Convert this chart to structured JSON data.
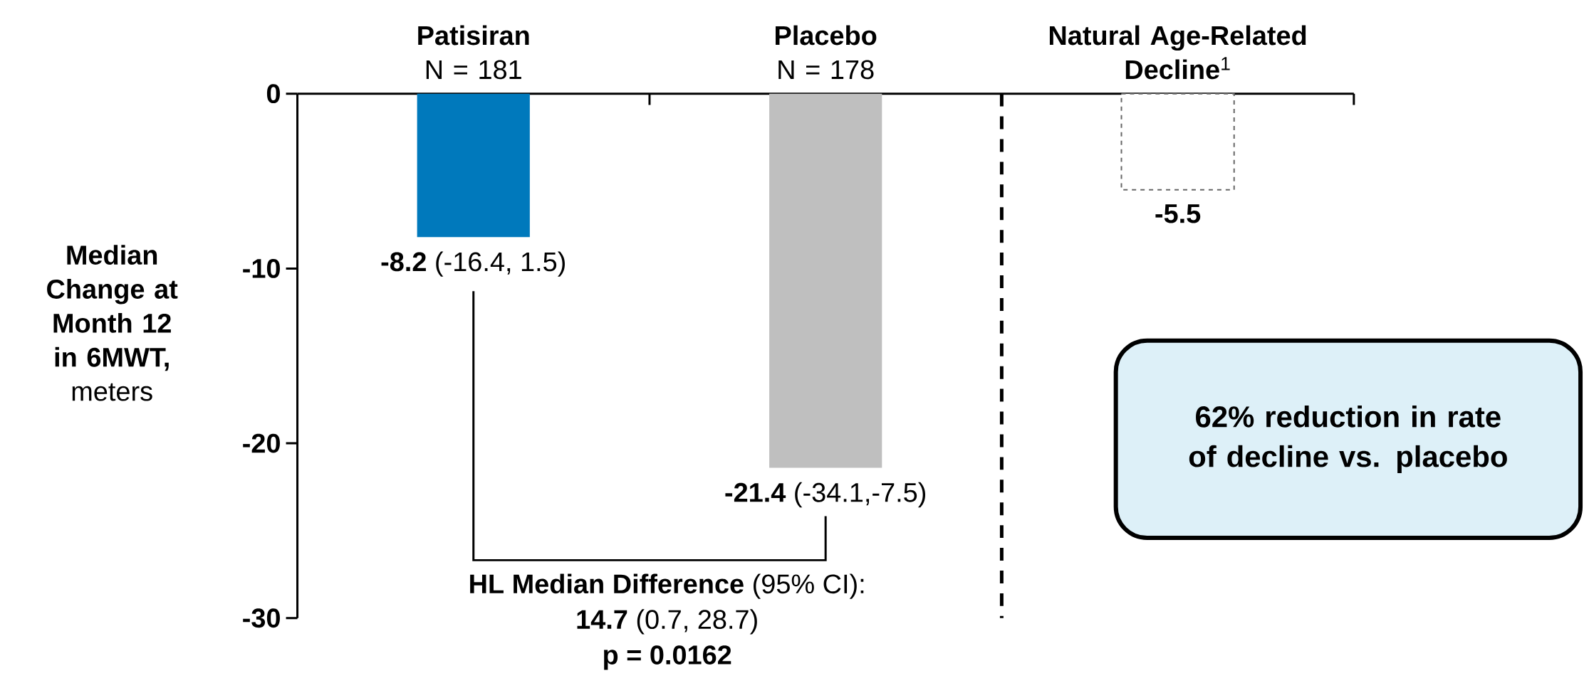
{
  "chart_data": {
    "type": "bar",
    "categories": [
      "**Patisiran** N = 181",
      "**Placebo** N = 178",
      "**Natural Age-Related Decline**$^{1}$"
    ],
    "ylabel": "**Median Change at Month 12 in 6MWT,** meters",
    "series": [
      {
        "values": [
          -8.2,
          -21.4,
          null
        ],
        "colors": [
          "#0079bc",
          "#bfbfbf",
          null
        ],
        "value_labels": [
          "**-8.2** (-16.4, 1.5)",
          "**-21.4** (-34.1,-7.5)",
          null
        ]
      },
      {
        "values": [
          null,
          null,
          -5.5
        ],
        "color": "#ffffff",
        "line_style": "dashed",
        "value_labels": [
          null,
          null,
          "**-5.5**"
        ]
      }
    ],
    "ylim": [
      -30,
      0
    ],
    "yticks": [
      0,
      -10,
      -20,
      -30
    ],
    "annotations": [
      "**HL Median Difference** (95% CI):",
      "**14.7** (0.7, 28.7)",
      "**p = 0.0162**",
      "62% reduction in rate of decline vs. placebo"
    ]
  }
}
